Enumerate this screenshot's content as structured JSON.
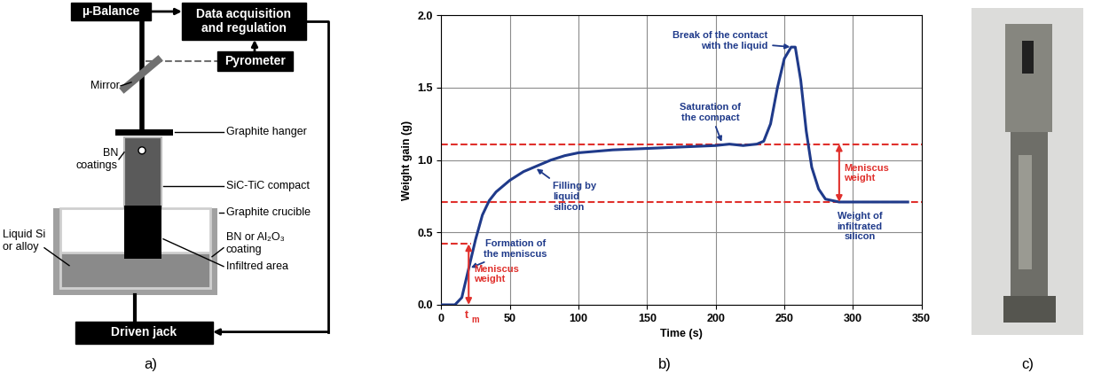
{
  "diagram": {
    "caption": "a)",
    "boxes": {
      "balance": "µ-Balance",
      "acquisition": "Data acquisition and regulation",
      "pyrometer": "Pyrometer",
      "jack": "Driven jack"
    },
    "labels": {
      "mirror": "Mirror",
      "hanger": "Graphite hanger",
      "bn_coatings": "BN coatings",
      "compact": "SiC-TiC compact",
      "crucible": "Graphite crucible",
      "liquid": "Liquid Si or alloy",
      "coating": "BN or Al₂O₃ coating",
      "infiltrated": "Infiltred area"
    }
  },
  "chart_data": {
    "type": "line",
    "caption": "b)",
    "xlabel": "Time (s)",
    "ylabel": "Weight gain (g)",
    "x": [
      0,
      10,
      15,
      20,
      25,
      30,
      35,
      40,
      50,
      60,
      70,
      80,
      90,
      100,
      125,
      150,
      175,
      200,
      210,
      220,
      230,
      235,
      240,
      245,
      250,
      255,
      258,
      262,
      266,
      270,
      275,
      280,
      290,
      300,
      340
    ],
    "values": [
      0,
      0,
      0.05,
      0.25,
      0.45,
      0.62,
      0.72,
      0.78,
      0.86,
      0.92,
      0.96,
      1.0,
      1.03,
      1.05,
      1.07,
      1.08,
      1.09,
      1.1,
      1.11,
      1.1,
      1.11,
      1.13,
      1.25,
      1.5,
      1.7,
      1.78,
      1.78,
      1.55,
      1.2,
      0.95,
      0.8,
      0.73,
      0.71,
      0.71,
      0.71
    ],
    "color": "#1f3a8a",
    "xlim": [
      0,
      350
    ],
    "xticks": [
      0,
      50,
      100,
      150,
      200,
      250,
      300,
      350
    ],
    "ylim": [
      0,
      2
    ],
    "yticks": [
      {
        "value": 0,
        "label": "0.0"
      },
      {
        "value": 0.5,
        "label": "0.5"
      },
      {
        "value": 1,
        "label": "1.0"
      },
      {
        "value": 1.5,
        "label": "1.5"
      },
      {
        "value": 2,
        "label": "2.0"
      }
    ],
    "grid": true,
    "reference_lines": [
      {
        "y": 1.11,
        "x": [
          0,
          350
        ]
      },
      {
        "y": 0.71,
        "x": [
          0,
          350
        ]
      },
      {
        "y": 0.42,
        "x": [
          0,
          22
        ]
      }
    ],
    "annotations": [
      {
        "text": "Formation of the meniscus",
        "x": 20,
        "y": 0.25
      },
      {
        "text": "Filling by liquid silicon",
        "x": 68,
        "y": 0.95
      },
      {
        "text": "Saturation of the compact",
        "x": 205,
        "y": 1.11
      },
      {
        "text": "Break of the contact with the liquid",
        "x": 256,
        "y": 1.78
      },
      {
        "text": "Weight of infiltrated silicon",
        "x": 305,
        "y": 0.71
      }
    ],
    "measures": [
      {
        "text": "Meniscus weight",
        "x": 20,
        "y": [
          0,
          0.42
        ]
      },
      {
        "text": "Meniscus weight",
        "x": 290,
        "y": [
          0.71,
          1.11
        ]
      }
    ],
    "time_marker": {
      "text": "t",
      "subscript": "m",
      "x": 20
    }
  },
  "photo": {
    "caption": "c)"
  }
}
